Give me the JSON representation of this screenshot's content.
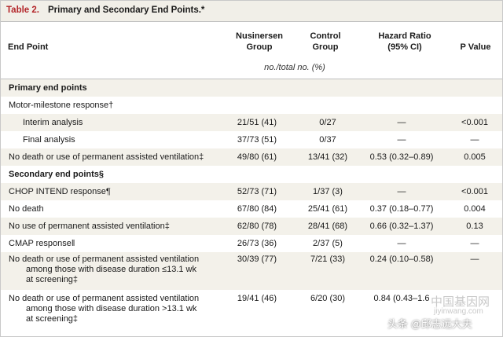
{
  "table": {
    "title_prefix": "Table 2.",
    "title": "Primary and Secondary End Points.*"
  },
  "headers": {
    "end_point": "End Point",
    "nusinersen_1": "Nusinersen",
    "nusinersen_2": "Group",
    "control_1": "Control",
    "control_2": "Group",
    "hr_1": "Hazard Ratio",
    "hr_2": "(95% CI)",
    "pvalue": "P Value",
    "units": "no./total no. (%)"
  },
  "rows": [
    {
      "label": "Primary end points",
      "section": true
    },
    {
      "label": "Motor-milestone response†",
      "n": "",
      "c": "",
      "hr": "",
      "p": ""
    },
    {
      "label": "Interim analysis",
      "indent": true,
      "n": "21/51 (41)",
      "c": "0/27",
      "hr": "—",
      "p": "<0.001"
    },
    {
      "label": "Final analysis",
      "indent": true,
      "n": "37/73 (51)",
      "c": "0/37",
      "hr": "—",
      "p": "—"
    },
    {
      "label": "No death or use of permanent assisted ventilation‡",
      "n": "49/80 (61)",
      "c": "13/41 (32)",
      "hr": "0.53 (0.32–0.89)",
      "p": "0.005"
    },
    {
      "label": "Secondary end points§",
      "section": true
    },
    {
      "label": "CHOP INTEND response¶",
      "n": "52/73 (71)",
      "c": "1/37 (3)",
      "hr": "—",
      "p": "<0.001"
    },
    {
      "label": "No death",
      "n": "67/80 (84)",
      "c": "25/41 (61)",
      "hr": "0.37 (0.18–0.77)",
      "p": "0.004"
    },
    {
      "label": "No use of permanent assisted ventilation‡",
      "n": "62/80 (78)",
      "c": "28/41 (68)",
      "hr": "0.66 (0.32–1.37)",
      "p": "0.13"
    },
    {
      "label": "CMAP response‖",
      "n": "26/73 (36)",
      "c": "2/37 (5)",
      "hr": "—",
      "p": "—"
    },
    {
      "label_l1": "No death or use of permanent assisted ventilation",
      "label_l2": "among those with disease duration ≤13.1 wk",
      "label_l3": "at screening‡",
      "n": "30/39 (77)",
      "c": "7/21 (33)",
      "hr": "0.24 (0.10–0.58)",
      "p": "—"
    },
    {
      "label_l1": "No death or use of permanent assisted ventilation",
      "label_l2": "among those with disease duration >13.1 wk",
      "label_l3": "at screening‡",
      "n": "19/41 (46)",
      "c": "6/20 (30)",
      "hr": "0.84 (0.43–1.6",
      "p": ""
    }
  ],
  "watermark": {
    "line1": "中国基因网",
    "line2": "jiyinwang.com",
    "line3": "头条 @邱志远大夫"
  }
}
